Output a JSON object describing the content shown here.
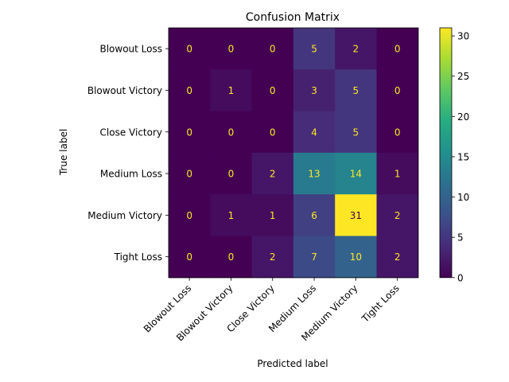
{
  "chart_data": {
    "type": "heatmap",
    "title": "Confusion Matrix",
    "xlabel": "Predicted label",
    "ylabel": "True label",
    "row_labels": [
      "Blowout Loss",
      "Blowout Victory",
      "Close Victory",
      "Medium Loss",
      "Medium Victory",
      "Tight Loss"
    ],
    "col_labels": [
      "Blowout Loss",
      "Blowout Victory",
      "Close Victory",
      "Medium Loss",
      "Medium Victory",
      "Tight Loss"
    ],
    "values": [
      [
        0,
        0,
        0,
        5,
        2,
        0
      ],
      [
        0,
        1,
        0,
        3,
        5,
        0
      ],
      [
        0,
        0,
        0,
        4,
        5,
        0
      ],
      [
        0,
        0,
        2,
        13,
        14,
        1
      ],
      [
        0,
        1,
        1,
        6,
        31,
        2
      ],
      [
        0,
        0,
        2,
        7,
        10,
        2
      ]
    ],
    "colormap": "viridis",
    "value_range": [
      0,
      31
    ],
    "colorbar_ticks": [
      0,
      5,
      10,
      15,
      20,
      25,
      30
    ],
    "text_color_dark_cells": "#fde725",
    "text_color_light_cells": "#440154",
    "grid": false,
    "colorbar_position": "right"
  }
}
